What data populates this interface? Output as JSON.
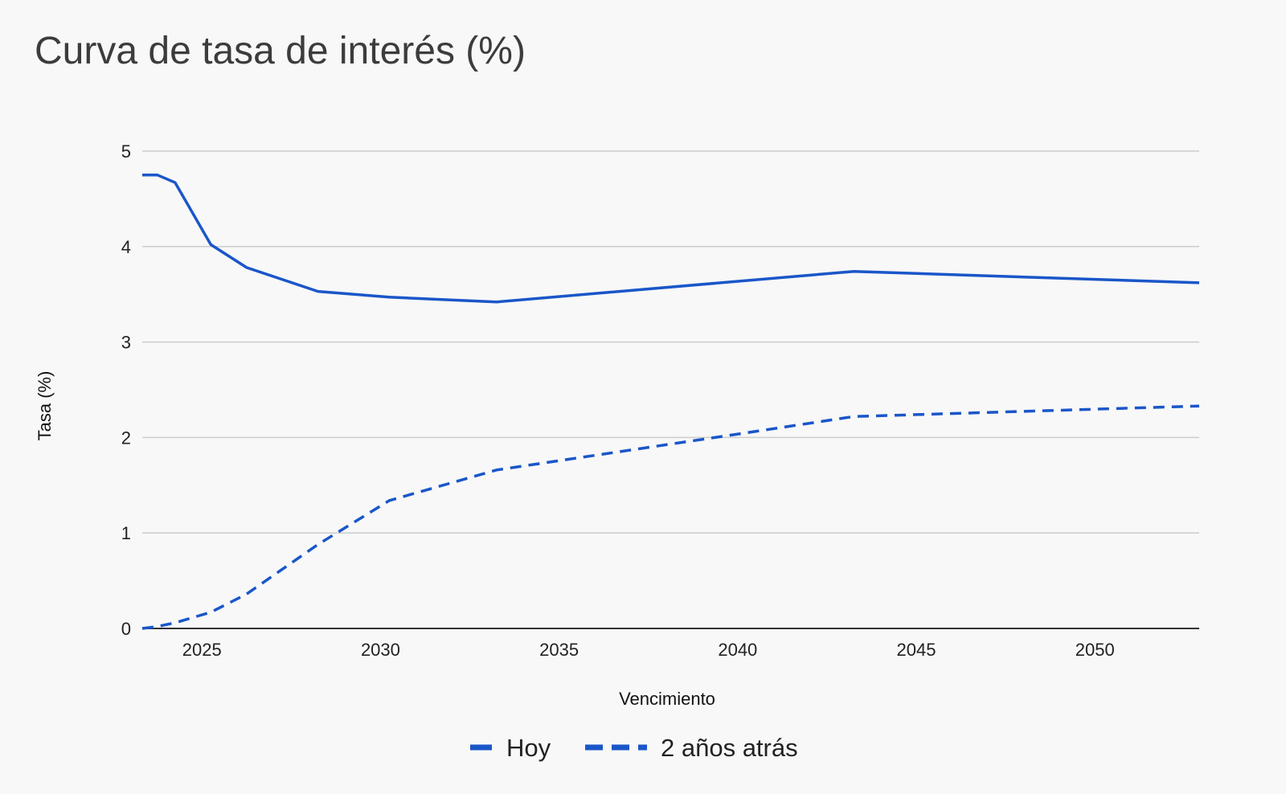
{
  "chart_data": {
    "type": "line",
    "title": "Curva de tasa de interés (%)",
    "xlabel": "Vencimiento",
    "ylabel": "Tasa (%)",
    "xlim": [
      2023.33,
      2052.92
    ],
    "ylim": [
      0,
      5
    ],
    "x_ticks": [
      2025,
      2030,
      2035,
      2040,
      2045,
      2050
    ],
    "y_ticks": [
      0,
      1,
      2,
      3,
      4,
      5
    ],
    "grid": true,
    "legend_position": "bottom",
    "series": [
      {
        "name": "Hoy",
        "style": "solid",
        "color": "#1a56c9",
        "points": [
          [
            2023.33,
            4.75
          ],
          [
            2023.75,
            4.75
          ],
          [
            2024.25,
            4.67
          ],
          [
            2025.25,
            4.02
          ],
          [
            2026.25,
            3.78
          ],
          [
            2028.25,
            3.53
          ],
          [
            2030.25,
            3.47
          ],
          [
            2033.25,
            3.42
          ],
          [
            2043.25,
            3.74
          ],
          [
            2052.92,
            3.62
          ]
        ]
      },
      {
        "name": "2 años atrás",
        "style": "dashed",
        "color": "#1a56c9",
        "points": [
          [
            2023.33,
            0.0
          ],
          [
            2023.75,
            0.02
          ],
          [
            2024.25,
            0.06
          ],
          [
            2025.25,
            0.17
          ],
          [
            2026.25,
            0.36
          ],
          [
            2028.25,
            0.88
          ],
          [
            2030.25,
            1.34
          ],
          [
            2033.25,
            1.66
          ],
          [
            2040.25,
            2.05
          ],
          [
            2043.25,
            2.22
          ],
          [
            2052.92,
            2.33
          ]
        ]
      }
    ]
  }
}
